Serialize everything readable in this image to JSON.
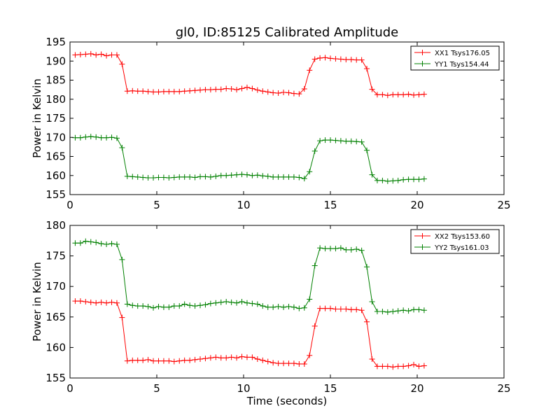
{
  "figure": {
    "title": "gl0, ID:85125 Calibrated Amplitude",
    "xlabel": "Time (seconds)"
  },
  "chart_data": [
    {
      "type": "line",
      "title": "gl0, ID:85125 Calibrated Amplitude",
      "xlabel": "",
      "ylabel": "Power in Kelvin",
      "xlim": [
        0,
        25
      ],
      "ylim": [
        155,
        195
      ],
      "xticks": [
        "0",
        "5",
        "10",
        "15",
        "20",
        "25"
      ],
      "yticks": [
        "155",
        "160",
        "165",
        "170",
        "175",
        "180",
        "185",
        "190",
        "195"
      ],
      "legend": "top-right",
      "grid": false,
      "x": [
        0.3,
        0.6,
        0.9,
        1.2,
        1.5,
        1.8,
        2.1,
        2.4,
        2.7,
        3.0,
        3.3,
        3.6,
        3.9,
        4.2,
        4.5,
        4.8,
        5.1,
        5.4,
        5.7,
        6.0,
        6.3,
        6.6,
        6.9,
        7.2,
        7.5,
        7.8,
        8.1,
        8.4,
        8.7,
        9.0,
        9.3,
        9.6,
        9.9,
        10.2,
        10.5,
        10.8,
        11.1,
        11.4,
        11.7,
        12.0,
        12.3,
        12.6,
        12.9,
        13.2,
        13.5,
        13.8,
        14.1,
        14.4,
        14.7,
        15.0,
        15.3,
        15.6,
        15.9,
        16.2,
        16.5,
        16.8,
        17.1,
        17.4,
        17.7,
        18.0,
        18.3,
        18.6,
        18.9,
        19.2,
        19.5,
        19.8,
        20.1,
        20.4
      ],
      "series": [
        {
          "name": "XX1 Tsys176.05",
          "color": "#ff0000",
          "values": [
            191.6,
            191.7,
            191.8,
            191.9,
            191.6,
            191.8,
            191.4,
            191.6,
            191.6,
            189.2,
            182.1,
            182.2,
            182.1,
            182.1,
            182.0,
            181.9,
            181.9,
            182.0,
            182.0,
            182.0,
            182.0,
            182.1,
            182.2,
            182.3,
            182.4,
            182.5,
            182.5,
            182.6,
            182.6,
            182.8,
            182.7,
            182.5,
            182.8,
            183.1,
            182.8,
            182.4,
            182.1,
            181.9,
            181.7,
            181.6,
            181.8,
            181.7,
            181.5,
            181.4,
            182.7,
            187.6,
            190.5,
            190.8,
            190.9,
            190.7,
            190.6,
            190.5,
            190.4,
            190.4,
            190.3,
            190.3,
            188.0,
            182.6,
            181.2,
            181.2,
            181.0,
            181.2,
            181.2,
            181.2,
            181.3,
            181.1,
            181.2,
            181.3
          ]
        },
        {
          "name": "YY1 Tsys154.44",
          "color": "#008000",
          "values": [
            169.9,
            169.9,
            170.1,
            170.2,
            170.1,
            169.9,
            169.9,
            170.0,
            169.8,
            167.3,
            159.8,
            159.7,
            159.6,
            159.5,
            159.4,
            159.4,
            159.5,
            159.5,
            159.4,
            159.5,
            159.6,
            159.6,
            159.6,
            159.5,
            159.7,
            159.7,
            159.6,
            159.8,
            160.0,
            160.0,
            160.1,
            160.2,
            160.3,
            160.2,
            160.0,
            160.1,
            159.9,
            159.8,
            159.6,
            159.6,
            159.6,
            159.6,
            159.6,
            159.5,
            159.2,
            161.0,
            166.4,
            169.1,
            169.3,
            169.3,
            169.2,
            169.1,
            169.0,
            169.0,
            168.9,
            168.8,
            166.6,
            160.2,
            158.7,
            158.7,
            158.5,
            158.6,
            158.7,
            158.9,
            159.0,
            159.0,
            159.0,
            159.1
          ]
        }
      ]
    },
    {
      "type": "line",
      "title": "",
      "xlabel": "Time (seconds)",
      "ylabel": "Power in Kelvin",
      "xlim": [
        0,
        25
      ],
      "ylim": [
        155,
        180
      ],
      "xticks": [
        "0",
        "5",
        "10",
        "15",
        "20",
        "25"
      ],
      "yticks": [
        "155",
        "160",
        "165",
        "170",
        "175",
        "180"
      ],
      "legend": "top-right",
      "grid": false,
      "x": [
        0.3,
        0.6,
        0.9,
        1.2,
        1.5,
        1.8,
        2.1,
        2.4,
        2.7,
        3.0,
        3.3,
        3.6,
        3.9,
        4.2,
        4.5,
        4.8,
        5.1,
        5.4,
        5.7,
        6.0,
        6.3,
        6.6,
        6.9,
        7.2,
        7.5,
        7.8,
        8.1,
        8.4,
        8.7,
        9.0,
        9.3,
        9.6,
        9.9,
        10.2,
        10.5,
        10.8,
        11.1,
        11.4,
        11.7,
        12.0,
        12.3,
        12.6,
        12.9,
        13.2,
        13.5,
        13.8,
        14.1,
        14.4,
        14.7,
        15.0,
        15.3,
        15.6,
        15.9,
        16.2,
        16.5,
        16.8,
        17.1,
        17.4,
        17.7,
        18.0,
        18.3,
        18.6,
        18.9,
        19.2,
        19.5,
        19.8,
        20.1,
        20.4
      ],
      "series": [
        {
          "name": "XX2 Tsys153.60",
          "color": "#ff0000",
          "values": [
            167.6,
            167.6,
            167.5,
            167.4,
            167.3,
            167.4,
            167.3,
            167.4,
            167.3,
            164.9,
            157.8,
            157.9,
            157.9,
            157.9,
            158.0,
            157.8,
            157.8,
            157.8,
            157.8,
            157.7,
            157.8,
            157.9,
            157.9,
            158.0,
            158.1,
            158.2,
            158.3,
            158.4,
            158.3,
            158.3,
            158.4,
            158.3,
            158.5,
            158.4,
            158.4,
            158.1,
            157.9,
            157.7,
            157.5,
            157.4,
            157.4,
            157.4,
            157.4,
            157.3,
            157.3,
            158.7,
            163.5,
            166.4,
            166.4,
            166.4,
            166.3,
            166.3,
            166.3,
            166.2,
            166.2,
            166.1,
            164.2,
            158.1,
            156.9,
            156.9,
            156.9,
            156.8,
            156.9,
            156.9,
            157.0,
            157.2,
            156.9,
            157.0
          ]
        },
        {
          "name": "YY2 Tsys161.03",
          "color": "#008000",
          "values": [
            177.1,
            177.1,
            177.4,
            177.3,
            177.2,
            177.0,
            176.9,
            177.0,
            176.9,
            174.4,
            167.1,
            166.9,
            166.8,
            166.8,
            166.7,
            166.5,
            166.7,
            166.6,
            166.6,
            166.8,
            166.8,
            167.1,
            166.9,
            166.8,
            166.9,
            167.0,
            167.2,
            167.3,
            167.4,
            167.5,
            167.4,
            167.3,
            167.5,
            167.3,
            167.2,
            167.1,
            166.8,
            166.6,
            166.6,
            166.7,
            166.6,
            166.7,
            166.6,
            166.4,
            166.5,
            167.9,
            173.4,
            176.3,
            176.2,
            176.2,
            176.2,
            176.3,
            176.0,
            176.0,
            176.1,
            175.9,
            173.2,
            167.5,
            165.9,
            165.9,
            165.8,
            165.9,
            166.0,
            166.1,
            166.0,
            166.2,
            166.2,
            166.1
          ]
        }
      ]
    }
  ]
}
